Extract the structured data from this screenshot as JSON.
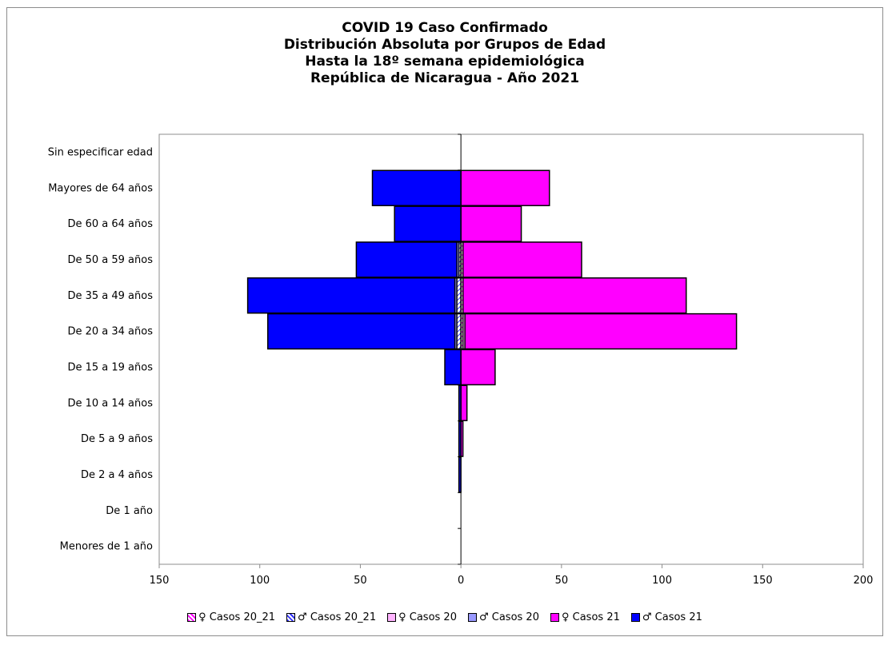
{
  "chart_data": {
    "type": "bar",
    "orientation": "horizontal",
    "stacked": true,
    "title": [
      "COVID 19 Caso Confirmado",
      "Distribución Absoluta por Grupos de Edad",
      "Hasta la 18º semana epidemiológica",
      "República de Nicaragua - Año 2021"
    ],
    "categories": [
      "Menores de 1 año",
      "De 1 año",
      "De 2 a 4 años",
      "De 5 a 9 años",
      "De 10 a 14 años",
      "De 15 a 19 años",
      "De 20 a 34 años",
      "De 35 a 49 años",
      "De 50 a 59 años",
      "De 60 a 64 años",
      "Mayores de 64 años",
      "Sin especificar edad"
    ],
    "xlim": [
      -150,
      200
    ],
    "xticks": [
      -150,
      -100,
      -50,
      0,
      50,
      100,
      150,
      200
    ],
    "xtick_labels": [
      "150",
      "100",
      "50",
      "0",
      "50",
      "100",
      "150",
      "200"
    ],
    "series": [
      {
        "name": "♀ Casos 20_21",
        "side": "female",
        "color": "#ff00ff",
        "pattern": "hatch",
        "values": [
          0,
          0,
          0,
          0,
          0,
          0,
          1,
          1,
          1,
          0,
          0,
          0
        ]
      },
      {
        "name": "♂ Casos 20_21",
        "side": "male",
        "color": "#3333ff",
        "pattern": "hatch",
        "values": [
          0,
          0,
          0,
          0,
          0,
          0,
          -2,
          -2,
          -1,
          0,
          0,
          0
        ]
      },
      {
        "name": "♀ Casos 20",
        "side": "female",
        "color": "#ffb3ff",
        "pattern": "solid",
        "values": [
          0,
          0,
          0,
          0,
          0,
          0,
          2,
          1,
          1,
          0,
          0,
          0
        ]
      },
      {
        "name": "♂ Casos 20",
        "side": "male",
        "color": "#9999ff",
        "pattern": "solid",
        "values": [
          0,
          0,
          0,
          0,
          0,
          0,
          -3,
          -3,
          -2,
          0,
          0,
          0
        ]
      },
      {
        "name": "♀ Casos 21",
        "side": "female",
        "color": "#ff00ff",
        "pattern": "solid",
        "values": [
          0,
          0,
          0,
          1,
          3,
          17,
          137,
          112,
          60,
          30,
          44,
          0
        ]
      },
      {
        "name": "♂ Casos 21",
        "side": "male",
        "color": "#0000ff",
        "pattern": "solid",
        "values": [
          0,
          0,
          -1,
          -1,
          -1,
          -8,
          -96,
          -106,
          -52,
          -33,
          -44,
          0
        ]
      }
    ],
    "legend_position": "bottom",
    "grid": false
  }
}
